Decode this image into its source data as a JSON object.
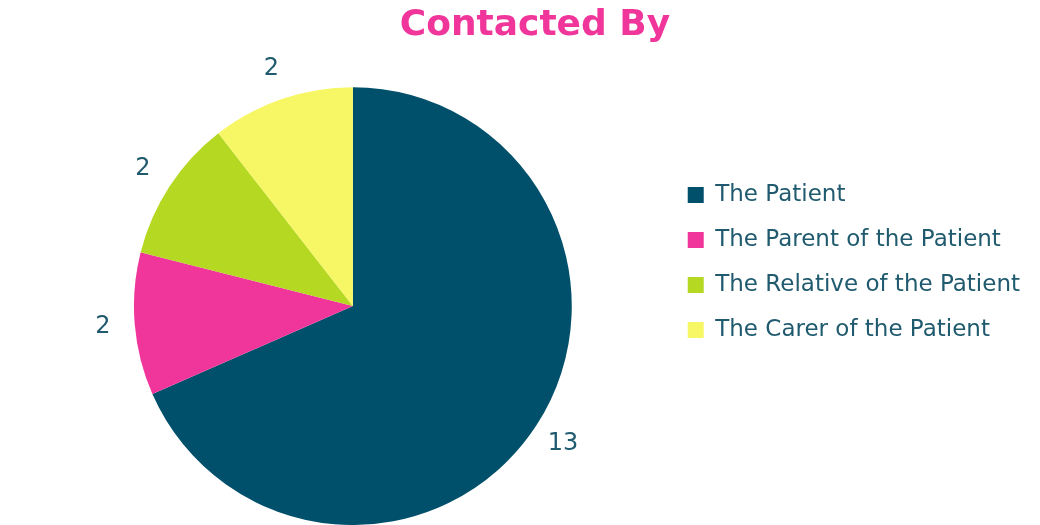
{
  "chart_data": {
    "type": "pie",
    "title": "Contacted By",
    "categories": [
      "The Patient",
      "The Parent of the Patient",
      "The Relative of the Patient",
      "The Carer of the Patient"
    ],
    "values": [
      13,
      2,
      2,
      2
    ],
    "colors": [
      "#004f6b",
      "#f0359b",
      "#b5d823",
      "#f7f765"
    ],
    "data_labels": true,
    "legend": "right"
  }
}
